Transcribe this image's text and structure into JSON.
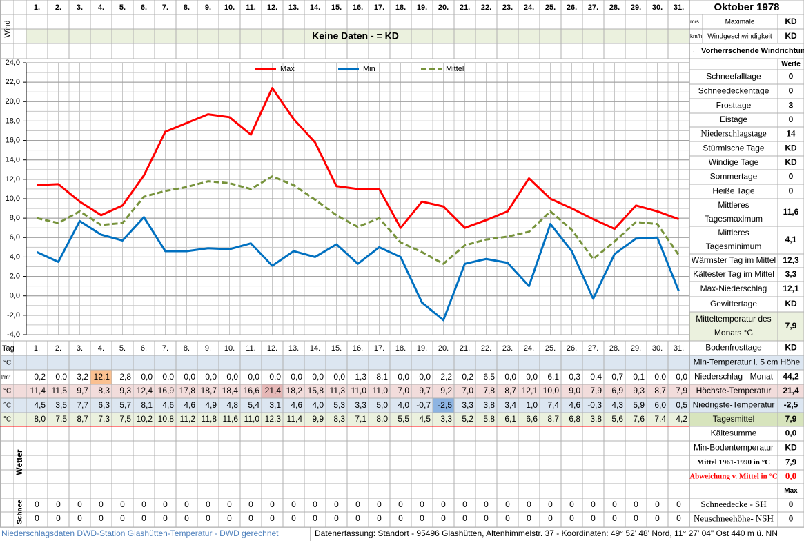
{
  "title": "Oktober 1978",
  "wind": {
    "label": "Wind",
    "note": "Keine Daten -  = KD",
    "units": [
      "m/s",
      "km/h"
    ],
    "caption": [
      "Maximale",
      "Windgeschwindigkeit"
    ],
    "values": [
      "KD",
      "KD"
    ],
    "direction": "← Vorherrschende Windrichtung"
  },
  "chart_data": {
    "type": "line",
    "categories": [
      "1.",
      "2.",
      "3.",
      "4.",
      "5.",
      "6.",
      "7.",
      "8.",
      "9.",
      "10.",
      "11.",
      "12.",
      "13.",
      "14.",
      "15.",
      "16.",
      "17.",
      "18.",
      "19.",
      "20.",
      "21.",
      "22.",
      "23.",
      "24.",
      "25.",
      "26.",
      "27.",
      "28.",
      "29.",
      "30.",
      "31."
    ],
    "series": [
      {
        "name": "Max",
        "color": "#ff0000",
        "values": [
          11.4,
          11.5,
          9.7,
          8.3,
          9.3,
          12.4,
          16.9,
          17.8,
          18.7,
          18.4,
          16.6,
          21.4,
          18.2,
          15.8,
          11.3,
          11.0,
          11.0,
          7.0,
          9.7,
          9.2,
          7.0,
          7.8,
          8.7,
          12.1,
          10.0,
          9.0,
          7.9,
          6.9,
          9.3,
          8.7,
          7.9
        ],
        "value_labels": [
          "11,4",
          "11,5",
          "9,7",
          "8,3",
          "9,3",
          "12,4",
          "16,9",
          "17,8",
          "18,7",
          "18,4",
          "16,6",
          "21,4",
          "18,2",
          "15,8",
          "11,3",
          "11,0",
          "11,0",
          "7,0",
          "9,7",
          "9,2",
          "7,0",
          "7,8",
          "8,7",
          "12,1",
          "10,0",
          "9,0",
          "7,9",
          "6,9",
          "9,3",
          "8,7",
          "7,9"
        ]
      },
      {
        "name": "Min",
        "color": "#0070c0",
        "values": [
          4.5,
          3.5,
          7.7,
          6.3,
          5.7,
          8.1,
          4.6,
          4.6,
          4.9,
          4.8,
          5.4,
          3.1,
          4.6,
          4.0,
          5.3,
          3.3,
          5.0,
          4.0,
          -0.7,
          -2.5,
          3.3,
          3.8,
          3.4,
          1.0,
          7.4,
          4.6,
          -0.3,
          4.3,
          5.9,
          6.0,
          0.5
        ],
        "value_labels": [
          "4,5",
          "3,5",
          "7,7",
          "6,3",
          "5,7",
          "8,1",
          "4,6",
          "4,6",
          "4,9",
          "4,8",
          "5,4",
          "3,1",
          "4,6",
          "4,0",
          "5,3",
          "3,3",
          "5,0",
          "4,0",
          "-0,7",
          "-2,5",
          "3,3",
          "3,8",
          "3,4",
          "1,0",
          "7,4",
          "4,6",
          "-0,3",
          "4,3",
          "5,9",
          "6,0",
          "0,5"
        ]
      },
      {
        "name": "Mittel",
        "color": "#77933c",
        "dashed": true,
        "values": [
          8.0,
          7.5,
          8.7,
          7.3,
          7.5,
          10.2,
          10.8,
          11.2,
          11.8,
          11.6,
          11.0,
          12.3,
          11.4,
          9.9,
          8.3,
          7.1,
          8.0,
          5.5,
          4.5,
          3.3,
          5.2,
          5.8,
          6.1,
          6.6,
          8.7,
          6.8,
          3.8,
          5.6,
          7.6,
          7.4,
          4.2
        ],
        "value_labels": [
          "8,0",
          "7,5",
          "8,7",
          "7,3",
          "7,5",
          "10,2",
          "10,8",
          "11,2",
          "11,8",
          "11,6",
          "11,0",
          "12,3",
          "11,4",
          "9,9",
          "8,3",
          "7,1",
          "8,0",
          "5,5",
          "4,5",
          "3,3",
          "5,2",
          "5,8",
          "6,1",
          "6,6",
          "8,7",
          "6,8",
          "3,8",
          "5,6",
          "7,6",
          "7,4",
          "4,2"
        ]
      }
    ],
    "ylim": [
      -4,
      24
    ],
    "yticks": [
      {
        "value": -4,
        "label": "-4,0"
      },
      {
        "value": -2,
        "label": "-2,0"
      },
      {
        "value": 0,
        "label": "0,0"
      },
      {
        "value": 2,
        "label": "2,0"
      },
      {
        "value": 4,
        "label": "4,0"
      },
      {
        "value": 6,
        "label": "6,0"
      },
      {
        "value": 8,
        "label": "8,0"
      },
      {
        "value": 10,
        "label": "10,0"
      },
      {
        "value": 12,
        "label": "12,0"
      },
      {
        "value": 14,
        "label": "14,0"
      },
      {
        "value": 16,
        "label": "16,0"
      },
      {
        "value": 18,
        "label": "18,0"
      },
      {
        "value": 20,
        "label": "20,0"
      },
      {
        "value": 22,
        "label": "22,0"
      },
      {
        "value": 24,
        "label": "24,0"
      }
    ],
    "grid": true,
    "legend": "top"
  },
  "table": {
    "day_label": "Tag",
    "min5_unit": "°C",
    "precip": {
      "unit": "l/m²",
      "values": [
        "0,2",
        "0,0",
        "3,2",
        "12,1",
        "2,8",
        "0,0",
        "0,0",
        "0,0",
        "0,0",
        "0,0",
        "0,0",
        "0,0",
        "0,0",
        "0,0",
        "0,0",
        "1,3",
        "8,1",
        "0,0",
        "0,0",
        "2,2",
        "0,2",
        "6,5",
        "0,0",
        "0,0",
        "6,1",
        "0,3",
        "0,4",
        "0,7",
        "0,1",
        "0,0",
        "0,0"
      ]
    },
    "max_unit": "°C",
    "min_unit": "°C",
    "mean_unit": "°C"
  },
  "weather_label": "Wetter",
  "snow": {
    "label": "Schnee",
    "rows": [
      [
        0,
        0,
        0,
        0,
        0,
        0,
        0,
        0,
        0,
        0,
        0,
        0,
        0,
        0,
        0,
        0,
        0,
        0,
        0,
        0,
        0,
        0,
        0,
        0,
        0,
        0,
        0,
        0,
        0,
        0,
        0
      ],
      [
        0,
        0,
        0,
        0,
        0,
        0,
        0,
        0,
        0,
        0,
        0,
        0,
        0,
        0,
        0,
        0,
        0,
        0,
        0,
        0,
        0,
        0,
        0,
        0,
        0,
        0,
        0,
        0,
        0,
        0,
        0
      ]
    ]
  },
  "summary": [
    {
      "value": "Werte"
    },
    {
      "label": "Schneefalltage",
      "value": "0"
    },
    {
      "label": "Schneedeckentage",
      "value": "0"
    },
    {
      "label": "Frosttage",
      "value": "3"
    },
    {
      "label": "Eistage",
      "value": "0"
    },
    {
      "label": "Niederschlagstage",
      "value": "14"
    },
    {
      "label": "Stürmische Tage",
      "value": "KD"
    },
    {
      "label": "Windige Tage",
      "value": "KD"
    },
    {
      "label": "Sommertage",
      "value": "0"
    },
    {
      "label": "Heiße Tage",
      "value": "0"
    },
    {
      "label": [
        "Mittleres",
        "Tagesmaximum"
      ],
      "value": "11,6"
    },
    {
      "label": [
        "Mittleres",
        "Tagesminimum"
      ],
      "value": "4,1"
    },
    {
      "label": "Wärmster Tag im Mittel",
      "value": "12,3"
    },
    {
      "label": "Kältester Tag im Mittel",
      "value": "3,3"
    },
    {
      "label": "Max-Niederschlag",
      "value": "12,1"
    },
    {
      "label": "Gewittertage",
      "value": "KD"
    },
    {
      "label": [
        "Mitteltemperatur des",
        "Monats °C"
      ],
      "value": "7,9"
    },
    {
      "label": "Bodenfrosttage",
      "value": "KD"
    },
    {
      "label": "Min-Temperatur i. 5 cm Höhe"
    },
    {
      "label": "Niederschlag - Monat",
      "value": "44,2"
    },
    {
      "label": "Höchste-Temperatur",
      "value": "21,4"
    },
    {
      "label": "Niedrigste-Temperatur",
      "value": "-2,5"
    },
    {
      "label": "Tagesmittel",
      "value": "7,9"
    },
    {
      "label": "Kältesumme",
      "value": "0,0"
    },
    {
      "label": "Min-Bodentemperatur",
      "value": "KD"
    },
    {
      "label": "Mittel 1961-1990 in °C",
      "value": "7,9"
    },
    {
      "label": "Abweichung v. Mittel in °C",
      "value": "0,0"
    },
    {
      "value": "Max"
    },
    {
      "label": "Schneedecke -  SH",
      "value": "0"
    },
    {
      "label": "Neuschneehöhe- NSH",
      "value": "0"
    }
  ],
  "footer": {
    "left": "Niederschlagsdaten DWD-Station Glashütten-Temperatur -  DWD gerechnet",
    "right": "Datenerfassung: Standort - 95496 Glashütten, Altenhimmelstr. 37 - Koordinaten: 49° 52' 48' Nord,  11° 27' 04\" Ost  440 m ü. NN"
  }
}
